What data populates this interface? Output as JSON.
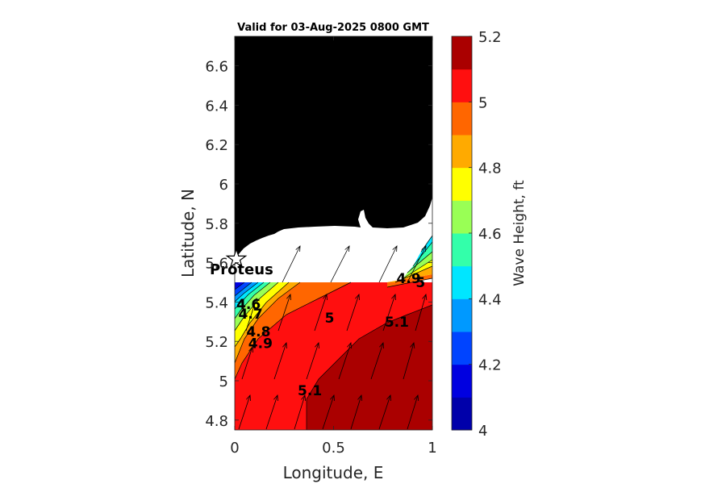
{
  "chart_data": {
    "type": "contour",
    "title": "Valid for 03-Aug-2025 0800 GMT",
    "xlabel": "Longitude, E",
    "ylabel": "Latitude, N",
    "xlim": [
      0,
      1
    ],
    "ylim": [
      4.75,
      6.75
    ],
    "xticks": [
      0,
      0.5,
      1
    ],
    "xtick_labels": [
      "0",
      "0.5",
      "1"
    ],
    "yticks": [
      4.8,
      5.0,
      5.2,
      5.4,
      5.6,
      5.8,
      6.0,
      6.2,
      6.4,
      6.6
    ],
    "ytick_labels": [
      "4.8",
      "5",
      "5.2",
      "5.4",
      "5.6",
      "5.8",
      "6",
      "6.2",
      "6.4",
      "6.6"
    ],
    "colorbar": {
      "label": "Wave Height, ft",
      "range": [
        4,
        5.2
      ],
      "step": 0.1,
      "tick_values": [
        4,
        4.2,
        4.4,
        4.6,
        4.8,
        5,
        5.2
      ],
      "tick_labels": [
        "4",
        "4.2",
        "4.4",
        "4.6",
        "4.8",
        "5",
        "5.2"
      ],
      "colors": [
        "#0000aa",
        "#0000e0",
        "#0044ff",
        "#0099ff",
        "#00e6ff",
        "#33ffaa",
        "#99ff55",
        "#ffff00",
        "#ffaa00",
        "#ff6600",
        "#ff0f0f",
        "#aa0000"
      ]
    },
    "contour_labels": [
      {
        "text": "4.6",
        "x": 0.07,
        "y": 5.39
      },
      {
        "text": "4.7",
        "x": 0.08,
        "y": 5.34
      },
      {
        "text": "4.8",
        "x": 0.12,
        "y": 5.25
      },
      {
        "text": "4.9",
        "x": 0.13,
        "y": 5.19
      },
      {
        "text": "5",
        "x": 0.48,
        "y": 5.32
      },
      {
        "text": "5.1",
        "x": 0.82,
        "y": 5.3
      },
      {
        "text": "5.1",
        "x": 0.38,
        "y": 4.95
      },
      {
        "text": "4.9",
        "x": 0.88,
        "y": 5.52
      },
      {
        "text": "5",
        "x": 0.94,
        "y": 5.5
      }
    ],
    "marker": {
      "label": "Proteus",
      "x": 0.01,
      "y": 5.6
    }
  }
}
